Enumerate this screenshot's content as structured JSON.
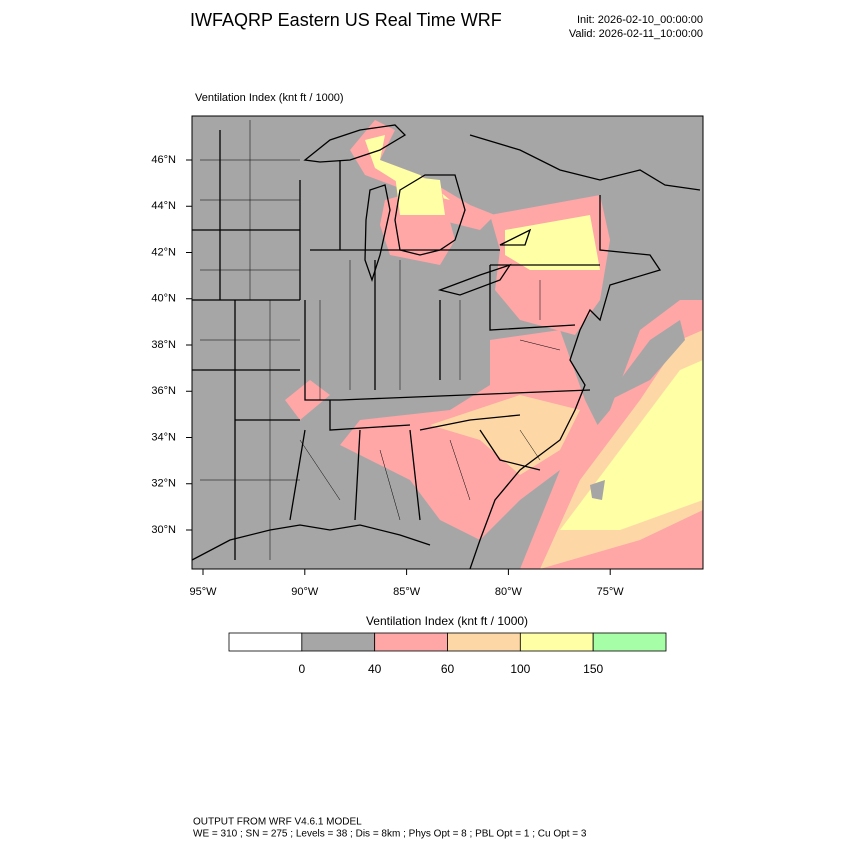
{
  "header": {
    "title": "IWFAQRP Eastern US Real Time WRF",
    "init": "Init: 2026-02-10_00:00:00",
    "valid": "Valid: 2026-02-11_10:00:00"
  },
  "map": {
    "label": "Ventilation Index   (knt ft / 1000)",
    "lat_labels": [
      "46°N",
      "44°N",
      "42°N",
      "40°N",
      "38°N",
      "36°N",
      "34°N",
      "32°N",
      "30°N"
    ],
    "lon_labels": [
      "95°W",
      "90°W",
      "85°W",
      "80°W",
      "75°W"
    ]
  },
  "colorbar": {
    "title": "Ventilation Index  (knt ft / 1000)",
    "ticks": [
      0,
      40,
      60,
      100,
      150
    ],
    "colors": [
      "#ffffff",
      "#a6a6a6",
      "#ffa6a6",
      "#fdd8a6",
      "#ffffa6",
      "#a6ffa6"
    ]
  },
  "footer": {
    "line1": "OUTPUT FROM WRF V4.6.1 MODEL",
    "line2": "WE = 310 ; SN = 275 ; Levels = 38 ; Dis = 8km ; Phys Opt = 8 ; PBL Opt = 1 ; Cu Opt = 3"
  }
}
